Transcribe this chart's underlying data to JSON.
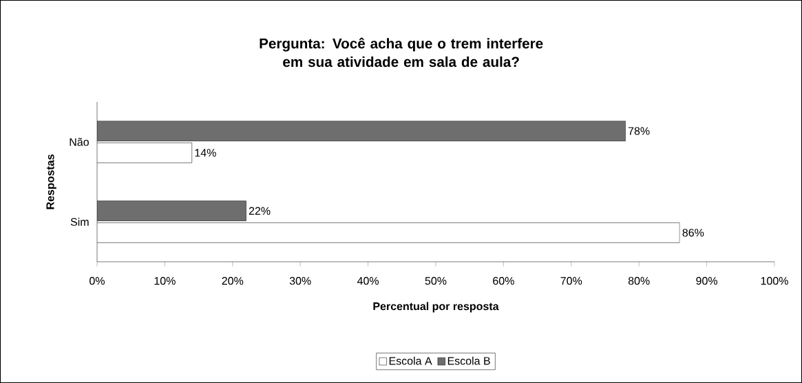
{
  "chart_data": {
    "type": "bar",
    "orientation": "horizontal",
    "title": "Pergunta: Você acha que o trem interfere em sua atividade em sala de aula?",
    "xlabel": "Percentual por resposta",
    "ylabel": "Respostas",
    "categories": [
      "Não",
      "Sim"
    ],
    "series": [
      {
        "name": "Escola A",
        "color": "#ffffff",
        "values": [
          14,
          86
        ],
        "value_labels": [
          "14%",
          "86%"
        ]
      },
      {
        "name": "Escola B",
        "color": "#6e6e6e",
        "values": [
          78,
          22
        ],
        "value_labels": [
          "78%",
          "22%"
        ]
      }
    ],
    "xlim": [
      0,
      100
    ],
    "xticks": [
      {
        "value": 0,
        "label": "0%"
      },
      {
        "value": 10,
        "label": "10%"
      },
      {
        "value": 20,
        "label": "20%"
      },
      {
        "value": 30,
        "label": "30%"
      },
      {
        "value": 40,
        "label": "40%"
      },
      {
        "value": 50,
        "label": "50%"
      },
      {
        "value": 60,
        "label": "60%"
      },
      {
        "value": 70,
        "label": "70%"
      },
      {
        "value": 80,
        "label": "80%"
      },
      {
        "value": 90,
        "label": "90%"
      },
      {
        "value": 100,
        "label": "100%"
      }
    ],
    "grid": false,
    "legend": "bottom"
  }
}
